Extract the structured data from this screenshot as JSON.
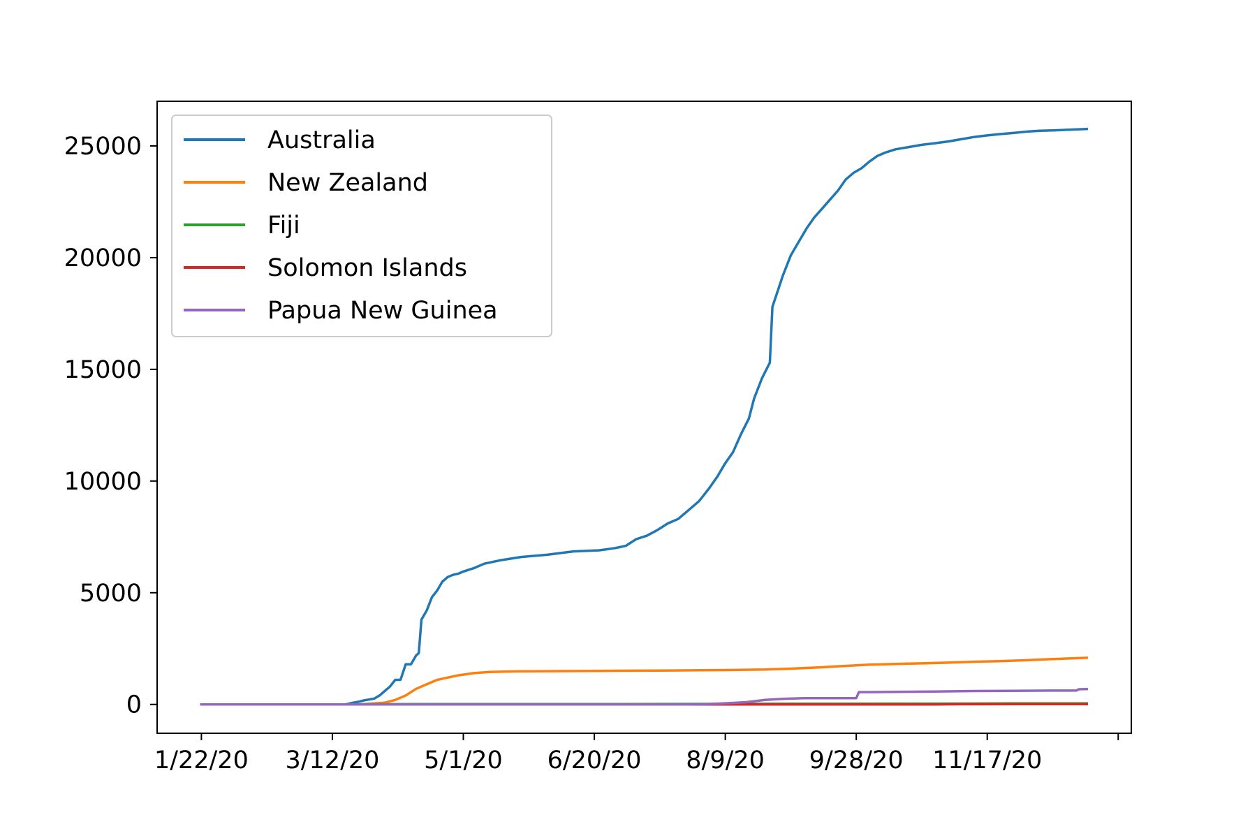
{
  "chart_data": {
    "type": "line",
    "title": "",
    "xlabel": "",
    "ylabel": "",
    "x_tick_labels": [
      "1/22/20",
      "3/12/20",
      "5/1/20",
      "6/20/20",
      "8/9/20",
      "9/28/20",
      "11/17/20"
    ],
    "x_tick_days": [
      0,
      50,
      100,
      150,
      200,
      250,
      300
    ],
    "x_range_days": [
      -16.9,
      355
    ],
    "y_ticks": [
      0,
      5000,
      10000,
      15000,
      20000,
      25000
    ],
    "ylim": [
      -1290,
      27000
    ],
    "grid": false,
    "legend": "top-left",
    "series": [
      {
        "name": "Australia",
        "color": "#1f77b4",
        "points": [
          [
            0,
            0
          ],
          [
            55,
            0
          ],
          [
            58,
            80
          ],
          [
            60,
            120
          ],
          [
            62,
            180
          ],
          [
            64,
            220
          ],
          [
            66,
            260
          ],
          [
            68,
            400
          ],
          [
            70,
            600
          ],
          [
            72,
            800
          ],
          [
            74,
            1100
          ],
          [
            76,
            1100
          ],
          [
            78,
            1800
          ],
          [
            80,
            1800
          ],
          [
            82,
            2200
          ],
          [
            83,
            2300
          ],
          [
            84,
            3800
          ],
          [
            86,
            4200
          ],
          [
            88,
            4800
          ],
          [
            90,
            5100
          ],
          [
            92,
            5500
          ],
          [
            94,
            5700
          ],
          [
            96,
            5800
          ],
          [
            98,
            5850
          ],
          [
            100,
            5950
          ],
          [
            104,
            6100
          ],
          [
            108,
            6300
          ],
          [
            114,
            6450
          ],
          [
            122,
            6600
          ],
          [
            132,
            6700
          ],
          [
            142,
            6850
          ],
          [
            152,
            6900
          ],
          [
            158,
            7000
          ],
          [
            162,
            7100
          ],
          [
            166,
            7400
          ],
          [
            170,
            7550
          ],
          [
            174,
            7800
          ],
          [
            178,
            8100
          ],
          [
            182,
            8300
          ],
          [
            186,
            8700
          ],
          [
            190,
            9100
          ],
          [
            194,
            9700
          ],
          [
            197,
            10200
          ],
          [
            200,
            10800
          ],
          [
            203,
            11300
          ],
          [
            206,
            12100
          ],
          [
            209,
            12800
          ],
          [
            211,
            13700
          ],
          [
            214,
            14600
          ],
          [
            217,
            15300
          ],
          [
            218,
            17800
          ],
          [
            220,
            18500
          ],
          [
            222,
            19200
          ],
          [
            225,
            20100
          ],
          [
            228,
            20700
          ],
          [
            231,
            21300
          ],
          [
            234,
            21800
          ],
          [
            237,
            22200
          ],
          [
            240,
            22600
          ],
          [
            243,
            23000
          ],
          [
            246,
            23500
          ],
          [
            249,
            23800
          ],
          [
            252,
            24000
          ],
          [
            255,
            24300
          ],
          [
            258,
            24550
          ],
          [
            261,
            24700
          ],
          [
            265,
            24850
          ],
          [
            270,
            24950
          ],
          [
            275,
            25050
          ],
          [
            280,
            25120
          ],
          [
            285,
            25200
          ],
          [
            290,
            25300
          ],
          [
            295,
            25400
          ],
          [
            300,
            25470
          ],
          [
            305,
            25530
          ],
          [
            310,
            25580
          ],
          [
            315,
            25640
          ],
          [
            320,
            25680
          ],
          [
            326,
            25700
          ],
          [
            332,
            25730
          ],
          [
            338,
            25760
          ]
        ]
      },
      {
        "name": "New Zealand",
        "color": "#ff7f0e",
        "points": [
          [
            0,
            0
          ],
          [
            60,
            0
          ],
          [
            70,
            80
          ],
          [
            74,
            200
          ],
          [
            78,
            400
          ],
          [
            82,
            700
          ],
          [
            86,
            900
          ],
          [
            90,
            1100
          ],
          [
            94,
            1200
          ],
          [
            98,
            1300
          ],
          [
            104,
            1400
          ],
          [
            110,
            1450
          ],
          [
            120,
            1480
          ],
          [
            150,
            1500
          ],
          [
            180,
            1520
          ],
          [
            200,
            1540
          ],
          [
            215,
            1560
          ],
          [
            225,
            1600
          ],
          [
            235,
            1650
          ],
          [
            245,
            1720
          ],
          [
            255,
            1780
          ],
          [
            265,
            1810
          ],
          [
            275,
            1840
          ],
          [
            285,
            1870
          ],
          [
            295,
            1910
          ],
          [
            305,
            1940
          ],
          [
            315,
            1980
          ],
          [
            325,
            2030
          ],
          [
            338,
            2090
          ]
        ]
      },
      {
        "name": "Fiji",
        "color": "#2ca02c",
        "points": [
          [
            0,
            0
          ],
          [
            60,
            0
          ],
          [
            62,
            5
          ],
          [
            80,
            18
          ],
          [
            120,
            18
          ],
          [
            160,
            18
          ],
          [
            200,
            27
          ],
          [
            240,
            32
          ],
          [
            280,
            35
          ],
          [
            310,
            45
          ],
          [
            338,
            46
          ]
        ]
      },
      {
        "name": "Solomon Islands",
        "color": "#d62728",
        "points": [
          [
            0,
            0
          ],
          [
            280,
            0
          ],
          [
            290,
            10
          ],
          [
            310,
            16
          ],
          [
            338,
            17
          ]
        ]
      },
      {
        "name": "Papua New Guinea",
        "color": "#9467bd",
        "points": [
          [
            0,
            0
          ],
          [
            185,
            0
          ],
          [
            192,
            8
          ],
          [
            200,
            50
          ],
          [
            208,
            100
          ],
          [
            215,
            200
          ],
          [
            222,
            250
          ],
          [
            230,
            280
          ],
          [
            240,
            280
          ],
          [
            245,
            280
          ],
          [
            250,
            280
          ],
          [
            251,
            550
          ],
          [
            255,
            550
          ],
          [
            265,
            560
          ],
          [
            280,
            580
          ],
          [
            295,
            600
          ],
          [
            310,
            610
          ],
          [
            325,
            620
          ],
          [
            334,
            620
          ],
          [
            335,
            680
          ],
          [
            338,
            690
          ]
        ]
      }
    ]
  }
}
